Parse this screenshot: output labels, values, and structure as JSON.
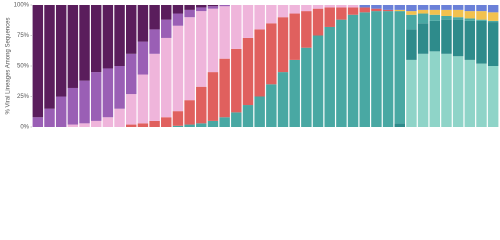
{
  "chart_data": {
    "type": "stacked_bar",
    "y_label": "% Viral Lineages Among Sequences",
    "ylim": [
      0,
      100
    ],
    "yticks": [
      {
        "value": 0,
        "label": "0%"
      },
      {
        "value": 25,
        "label": "25%"
      },
      {
        "value": 50,
        "label": "50%"
      },
      {
        "value": 75,
        "label": "75%"
      },
      {
        "value": 100,
        "label": "100%"
      }
    ],
    "categories": [
      null,
      null,
      null,
      null,
      null,
      null,
      null,
      null,
      null,
      null,
      null,
      null,
      null,
      null,
      null,
      null,
      null,
      null,
      null,
      null,
      null,
      null,
      null,
      null,
      null,
      null,
      null,
      null,
      null,
      null,
      null,
      null,
      null,
      null,
      null,
      null,
      null,
      null,
      null,
      null
    ],
    "series": [
      {
        "color": "#8fd4c8",
        "values": [
          0,
          0,
          0,
          0,
          0,
          0,
          0,
          0,
          0,
          0,
          0,
          0,
          0,
          0,
          0,
          0,
          0,
          0,
          0,
          0,
          0,
          0,
          0,
          0,
          0,
          0,
          0,
          0,
          0,
          0,
          0,
          0,
          55,
          60,
          62,
          60,
          58,
          55,
          52,
          50
        ]
      },
      {
        "color": "#2e8b8b",
        "values": [
          0,
          0,
          0,
          0,
          0,
          0,
          0,
          0,
          0,
          0,
          0,
          0,
          0,
          0,
          0,
          0,
          0,
          0,
          0,
          0,
          0,
          0,
          0,
          0,
          0,
          0,
          0,
          0,
          0,
          0,
          0,
          3,
          25,
          25,
          25,
          28,
          30,
          32,
          35,
          36
        ]
      },
      {
        "color": "#49a8a3",
        "values": [
          0,
          0,
          0,
          0,
          0,
          0,
          0,
          0,
          0,
          0,
          0,
          0,
          1,
          2,
          3,
          5,
          8,
          12,
          18,
          25,
          35,
          45,
          55,
          65,
          75,
          82,
          88,
          92,
          94,
          95,
          95,
          92,
          12,
          8,
          5,
          3,
          2,
          2,
          1,
          1
        ]
      },
      {
        "color": "#e0605e",
        "values": [
          0,
          0,
          0,
          0,
          0,
          0,
          0,
          0,
          2,
          3,
          5,
          8,
          12,
          20,
          30,
          40,
          48,
          52,
          55,
          55,
          50,
          45,
          38,
          30,
          22,
          16,
          10,
          6,
          4,
          2,
          1,
          0,
          0,
          0,
          0,
          0,
          0,
          0,
          0,
          0
        ]
      },
      {
        "color": "#efb5db",
        "values": [
          0,
          0,
          0,
          2,
          3,
          5,
          8,
          15,
          25,
          40,
          55,
          65,
          70,
          68,
          62,
          52,
          43,
          36,
          27,
          20,
          15,
          10,
          7,
          5,
          3,
          2,
          2,
          2,
          0,
          0,
          0,
          0,
          0,
          0,
          0,
          0,
          0,
          0,
          0,
          0
        ]
      },
      {
        "color": "#9a5fb5",
        "values": [
          8,
          15,
          25,
          30,
          35,
          40,
          40,
          35,
          33,
          27,
          20,
          15,
          10,
          6,
          3,
          2,
          1,
          0,
          0,
          0,
          0,
          0,
          0,
          0,
          0,
          0,
          0,
          0,
          0,
          0,
          0,
          0,
          0,
          0,
          0,
          0,
          0,
          0,
          0,
          0
        ]
      },
      {
        "color": "#5a1d5c",
        "values": [
          92,
          85,
          75,
          68,
          62,
          55,
          52,
          50,
          40,
          30,
          20,
          12,
          7,
          4,
          2,
          1,
          0,
          0,
          0,
          0,
          0,
          0,
          0,
          0,
          0,
          0,
          0,
          0,
          0,
          0,
          0,
          0,
          0,
          0,
          0,
          0,
          0,
          0,
          0,
          0
        ]
      },
      {
        "color": "#f2c14e",
        "values": [
          0,
          0,
          0,
          0,
          0,
          0,
          0,
          0,
          0,
          0,
          0,
          0,
          0,
          0,
          0,
          0,
          0,
          0,
          0,
          0,
          0,
          0,
          0,
          0,
          0,
          0,
          0,
          0,
          0,
          0,
          0,
          1,
          3,
          3,
          4,
          5,
          6,
          6,
          7,
          7
        ]
      },
      {
        "color": "#6a80d8",
        "values": [
          0,
          0,
          0,
          0,
          0,
          0,
          0,
          0,
          0,
          0,
          0,
          0,
          0,
          0,
          0,
          0,
          0,
          0,
          0,
          0,
          0,
          0,
          0,
          0,
          0,
          0,
          0,
          0,
          2,
          3,
          4,
          4,
          5,
          4,
          4,
          4,
          4,
          5,
          5,
          6
        ]
      }
    ]
  }
}
